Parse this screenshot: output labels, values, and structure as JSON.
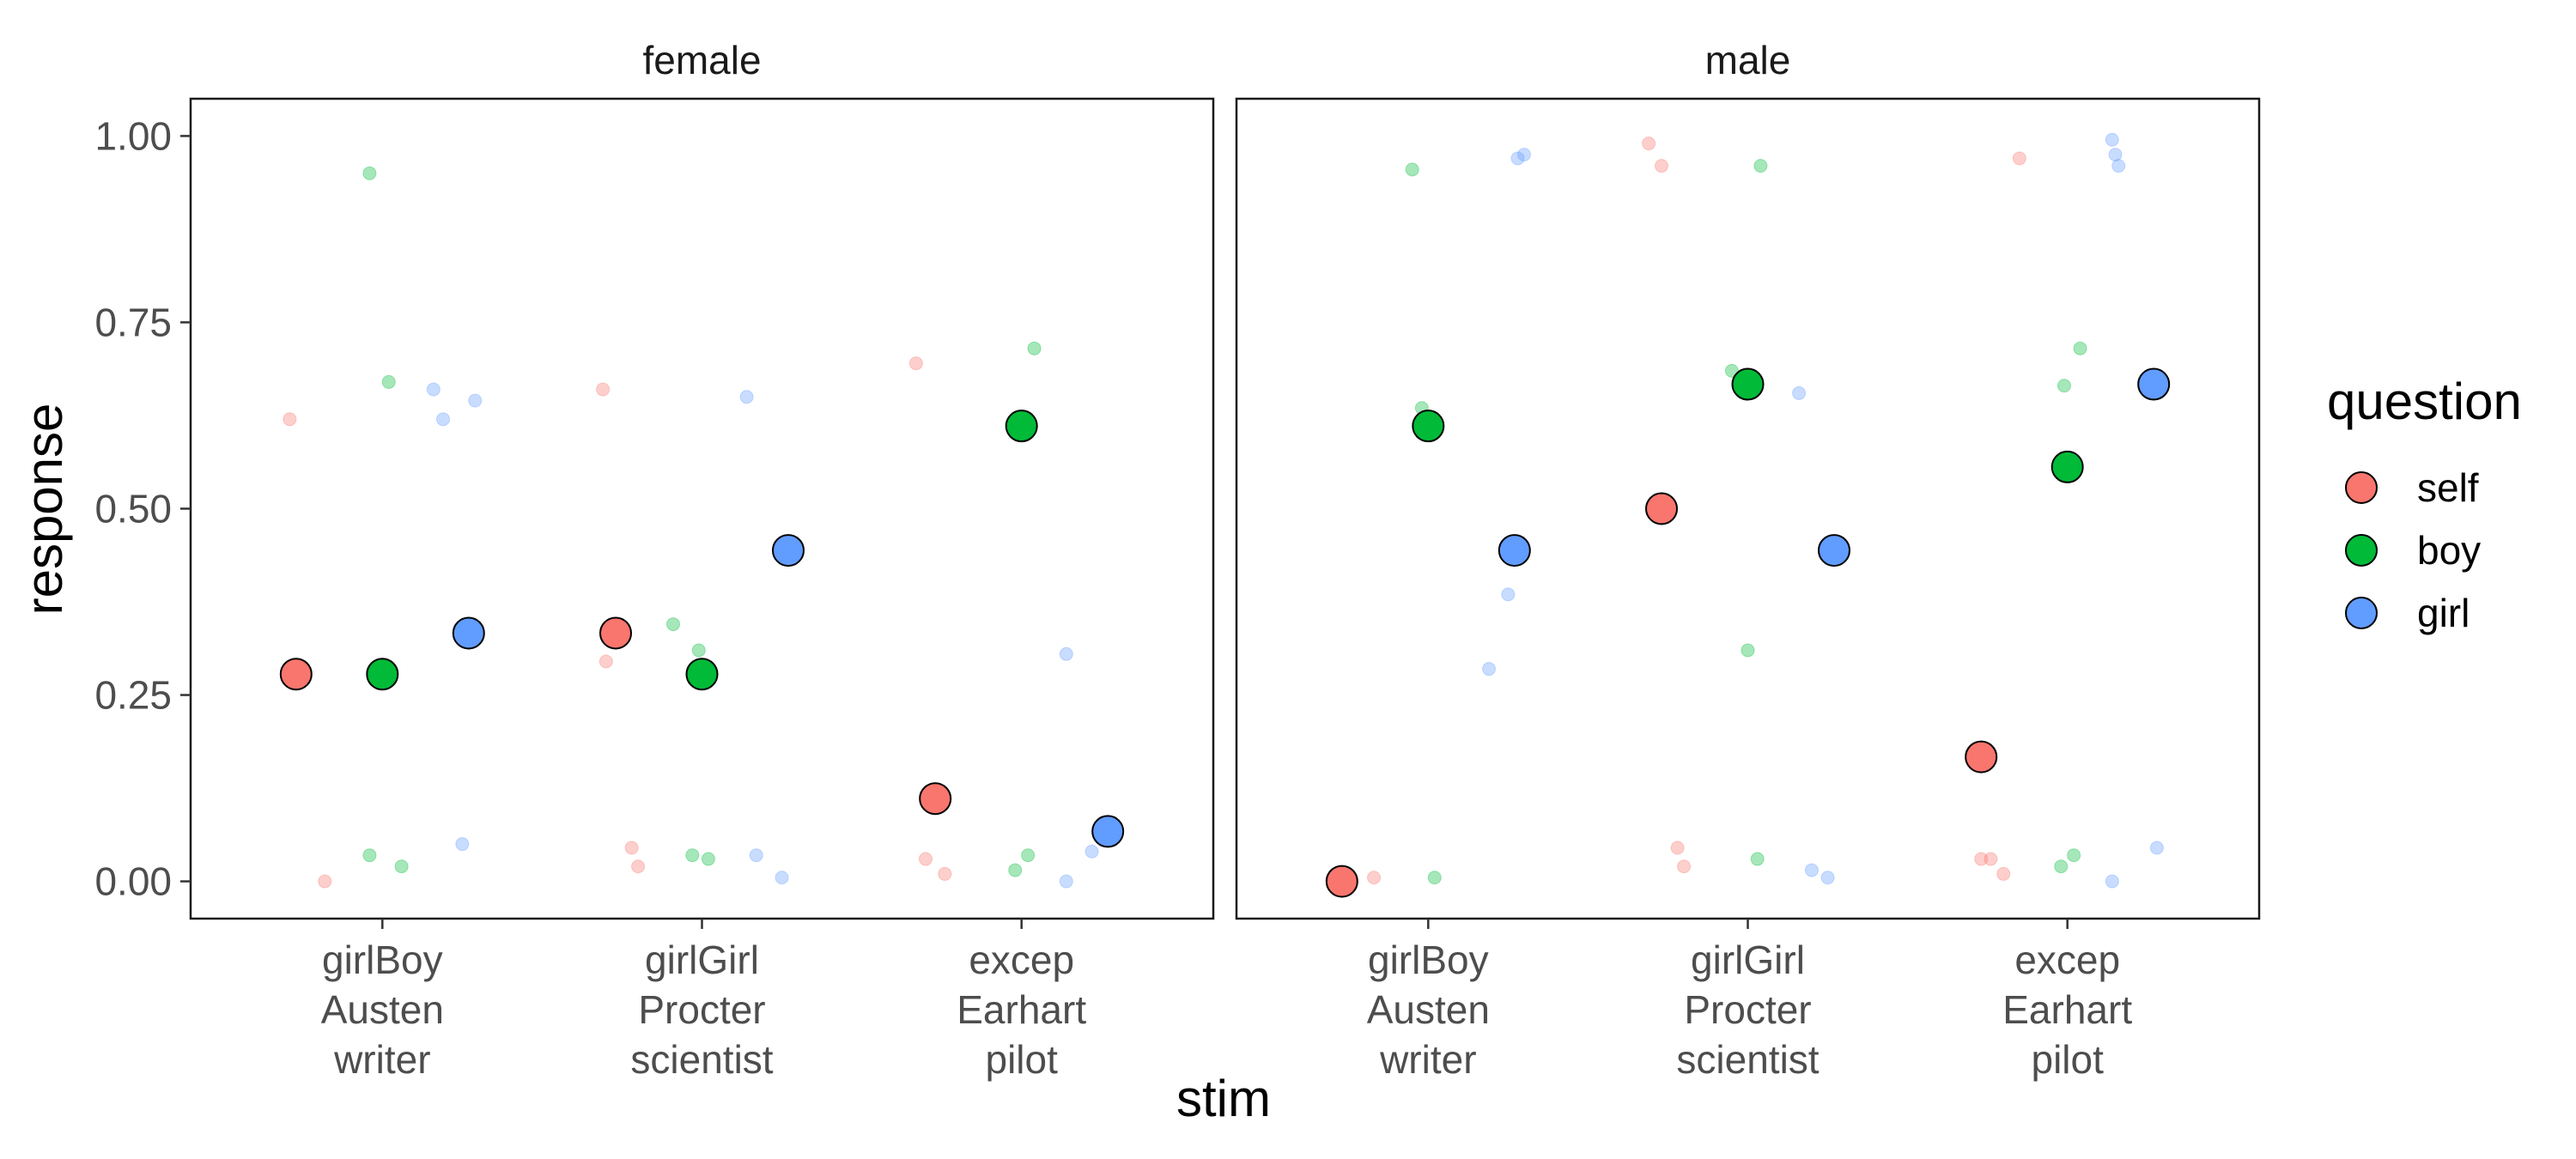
{
  "chart_data": {
    "type": "scatter",
    "title": "",
    "xlabel": "stim",
    "ylabel": "response",
    "ylim": [
      -0.05,
      1.05
    ],
    "y_ticks": [
      "0.00",
      "0.25",
      "0.50",
      "0.75",
      "1.00"
    ],
    "y_tick_values": [
      0,
      0.25,
      0.5,
      0.75,
      1.0
    ],
    "categories": [
      [
        "girlBoy",
        "Austen",
        "writer"
      ],
      [
        "girlGirl",
        "Procter",
        "scientist"
      ],
      [
        "excep",
        "Earhart",
        "pilot"
      ]
    ],
    "panels": [
      {
        "name": "female",
        "means": [
          {
            "question": "self",
            "cat": 0,
            "y": 0.278
          },
          {
            "question": "boy",
            "cat": 0,
            "y": 0.278
          },
          {
            "question": "girl",
            "cat": 0,
            "y": 0.333
          },
          {
            "question": "self",
            "cat": 1,
            "y": 0.333
          },
          {
            "question": "boy",
            "cat": 1,
            "y": 0.278
          },
          {
            "question": "girl",
            "cat": 1,
            "y": 0.444
          },
          {
            "question": "self",
            "cat": 2,
            "y": 0.111
          },
          {
            "question": "boy",
            "cat": 2,
            "y": 0.611
          },
          {
            "question": "girl",
            "cat": 2,
            "y": 0.067
          }
        ],
        "raw": [
          {
            "question": "self",
            "x": 0.71,
            "y": 0.62
          },
          {
            "question": "self",
            "x": 0.82,
            "y": 0.0
          },
          {
            "question": "boy",
            "x": 0.96,
            "y": 0.95
          },
          {
            "question": "boy",
            "x": 1.02,
            "y": 0.67
          },
          {
            "question": "boy",
            "x": 0.96,
            "y": 0.035
          },
          {
            "question": "boy",
            "x": 1.06,
            "y": 0.02
          },
          {
            "question": "girl",
            "x": 1.16,
            "y": 0.66
          },
          {
            "question": "girl",
            "x": 1.19,
            "y": 0.62
          },
          {
            "question": "girl",
            "x": 1.29,
            "y": 0.645
          },
          {
            "question": "girl",
            "x": 1.25,
            "y": 0.05
          },
          {
            "question": "self",
            "x": 1.69,
            "y": 0.66
          },
          {
            "question": "self",
            "x": 1.7,
            "y": 0.295
          },
          {
            "question": "self",
            "x": 1.78,
            "y": 0.045
          },
          {
            "question": "self",
            "x": 1.8,
            "y": 0.02
          },
          {
            "question": "boy",
            "x": 1.91,
            "y": 0.345
          },
          {
            "question": "boy",
            "x": 1.99,
            "y": 0.31
          },
          {
            "question": "boy",
            "x": 1.97,
            "y": 0.035
          },
          {
            "question": "boy",
            "x": 2.02,
            "y": 0.03
          },
          {
            "question": "girl",
            "x": 2.14,
            "y": 0.65
          },
          {
            "question": "girl",
            "x": 2.17,
            "y": 0.035
          },
          {
            "question": "girl",
            "x": 2.25,
            "y": 0.005
          },
          {
            "question": "self",
            "x": 2.67,
            "y": 0.695
          },
          {
            "question": "self",
            "x": 2.7,
            "y": 0.03
          },
          {
            "question": "self",
            "x": 2.76,
            "y": 0.01
          },
          {
            "question": "boy",
            "x": 3.04,
            "y": 0.715
          },
          {
            "question": "boy",
            "x": 3.02,
            "y": 0.035
          },
          {
            "question": "boy",
            "x": 2.98,
            "y": 0.015
          },
          {
            "question": "girl",
            "x": 3.14,
            "y": 0.305
          },
          {
            "question": "girl",
            "x": 3.22,
            "y": 0.04
          },
          {
            "question": "girl",
            "x": 3.14,
            "y": 0.0
          }
        ]
      },
      {
        "name": "male",
        "means": [
          {
            "question": "self",
            "cat": 0,
            "y": 0.0
          },
          {
            "question": "boy",
            "cat": 0,
            "y": 0.611
          },
          {
            "question": "girl",
            "cat": 0,
            "y": 0.444
          },
          {
            "question": "self",
            "cat": 1,
            "y": 0.5
          },
          {
            "question": "boy",
            "cat": 1,
            "y": 0.667
          },
          {
            "question": "girl",
            "cat": 1,
            "y": 0.444
          },
          {
            "question": "self",
            "cat": 2,
            "y": 0.167
          },
          {
            "question": "boy",
            "cat": 2,
            "y": 0.556
          },
          {
            "question": "girl",
            "cat": 2,
            "y": 0.667
          }
        ],
        "raw": [
          {
            "question": "self",
            "x": 0.73,
            "y": 0.005
          },
          {
            "question": "self",
            "x": 0.83,
            "y": 0.005
          },
          {
            "question": "boy",
            "x": 0.95,
            "y": 0.955
          },
          {
            "question": "boy",
            "x": 0.98,
            "y": 0.635
          },
          {
            "question": "boy",
            "x": 1.02,
            "y": 0.005
          },
          {
            "question": "girl",
            "x": 1.28,
            "y": 0.97
          },
          {
            "question": "girl",
            "x": 1.3,
            "y": 0.975
          },
          {
            "question": "girl",
            "x": 1.25,
            "y": 0.385
          },
          {
            "question": "girl",
            "x": 1.19,
            "y": 0.285
          },
          {
            "question": "self",
            "x": 1.69,
            "y": 0.99
          },
          {
            "question": "self",
            "x": 1.73,
            "y": 0.96
          },
          {
            "question": "self",
            "x": 1.78,
            "y": 0.045
          },
          {
            "question": "self",
            "x": 1.8,
            "y": 0.02
          },
          {
            "question": "boy",
            "x": 1.95,
            "y": 0.685
          },
          {
            "question": "boy",
            "x": 2.04,
            "y": 0.96
          },
          {
            "question": "boy",
            "x": 2.0,
            "y": 0.31
          },
          {
            "question": "boy",
            "x": 2.03,
            "y": 0.03
          },
          {
            "question": "girl",
            "x": 2.16,
            "y": 0.655
          },
          {
            "question": "girl",
            "x": 2.2,
            "y": 0.015
          },
          {
            "question": "girl",
            "x": 2.25,
            "y": 0.005
          },
          {
            "question": "self",
            "x": 2.85,
            "y": 0.97
          },
          {
            "question": "self",
            "x": 2.73,
            "y": 0.03
          },
          {
            "question": "self",
            "x": 2.76,
            "y": 0.03
          },
          {
            "question": "self",
            "x": 2.8,
            "y": 0.01
          },
          {
            "question": "boy",
            "x": 3.04,
            "y": 0.715
          },
          {
            "question": "boy",
            "x": 2.99,
            "y": 0.665
          },
          {
            "question": "boy",
            "x": 3.02,
            "y": 0.035
          },
          {
            "question": "boy",
            "x": 2.98,
            "y": 0.02
          },
          {
            "question": "girl",
            "x": 3.14,
            "y": 0.995
          },
          {
            "question": "girl",
            "x": 3.15,
            "y": 0.975
          },
          {
            "question": "girl",
            "x": 3.16,
            "y": 0.96
          },
          {
            "question": "girl",
            "x": 3.28,
            "y": 0.045
          },
          {
            "question": "girl",
            "x": 3.14,
            "y": 0.0
          }
        ]
      }
    ],
    "legend": {
      "title": "question",
      "placement": "right",
      "items": [
        {
          "name": "self",
          "color": "#F8766D"
        },
        {
          "name": "boy",
          "color": "#00BA38"
        },
        {
          "name": "girl",
          "color": "#619CFF"
        }
      ]
    },
    "colors": {
      "self": "#F8766D",
      "boy": "#00BA38",
      "girl": "#619CFF"
    }
  }
}
